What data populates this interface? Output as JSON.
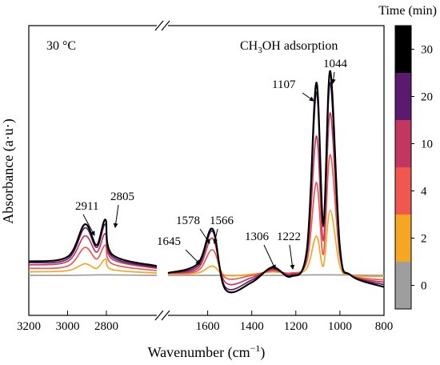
{
  "chart_data": {
    "type": "line",
    "title": "",
    "xlabel": "Wavenumber (cm",
    "xlabel_sup": "−1",
    "xlabel_close": ")",
    "ylabel": "Absorbance (a·u·)",
    "x_reversed": true,
    "x_break": true,
    "xlim_left_panel": [
      3200,
      2540
    ],
    "xlim_right_panel": [
      1780,
      800
    ],
    "x_ticks": [
      {
        "label": "3200",
        "value": 3200
      },
      {
        "label": "3000",
        "value": 3000
      },
      {
        "label": "2800",
        "value": 2800
      },
      {
        "label": "1600",
        "value": 1600
      },
      {
        "label": "1400",
        "value": 1400
      },
      {
        "label": "1200",
        "value": 1200
      },
      {
        "label": "1000",
        "value": 1000
      },
      {
        "label": "800",
        "value": 800
      }
    ],
    "annotations": {
      "temperature": "30 °C",
      "condition_main": "CH",
      "condition_sub": "3",
      "condition_tail": "OH adsorption"
    },
    "peak_labels": [
      {
        "label": "2911",
        "x": 2911
      },
      {
        "label": "2805",
        "x": 2805
      },
      {
        "label": "1645",
        "x": 1645
      },
      {
        "label": "1578",
        "x": 1578
      },
      {
        "label": "1566",
        "x": 1566
      },
      {
        "label": "1306",
        "x": 1306
      },
      {
        "label": "1222",
        "x": 1222
      },
      {
        "label": "1107",
        "x": 1107
      },
      {
        "label": "1044",
        "x": 1044
      }
    ],
    "colorbar": {
      "title": "Time (min)",
      "levels": [
        "0",
        "2",
        "4",
        "10",
        "20",
        "30"
      ],
      "colors": [
        "#9e9e9e",
        "#f5a623",
        "#f0584f",
        "#c2375f",
        "#5a1a6e",
        "#000000"
      ]
    },
    "series": [
      {
        "time": 0,
        "color": "#9e9e9e",
        "left": [
          [
            3200,
            0.0
          ],
          [
            3000,
            0.0
          ],
          [
            2911,
            0.001
          ],
          [
            2805,
            0.002
          ],
          [
            2540,
            0.0
          ]
        ],
        "right": [
          [
            1780,
            0.0
          ],
          [
            1600,
            0.0
          ],
          [
            1500,
            0.0
          ],
          [
            1300,
            0.0
          ],
          [
            1107,
            0.002
          ],
          [
            1044,
            0.002
          ],
          [
            800,
            0.0
          ]
        ]
      },
      {
        "time": 2,
        "color": "#f5a623",
        "left": [
          [
            3200,
            0.015
          ],
          [
            3000,
            0.02
          ],
          [
            2911,
            0.05
          ],
          [
            2850,
            0.03
          ],
          [
            2805,
            0.07
          ],
          [
            2770,
            0.025
          ],
          [
            2540,
            0.01
          ]
        ],
        "right": [
          [
            1780,
            0.005
          ],
          [
            1645,
            0.01
          ],
          [
            1578,
            0.04
          ],
          [
            1520,
            0.0
          ],
          [
            1400,
            0.005
          ],
          [
            1306,
            0.015
          ],
          [
            1222,
            0.01
          ],
          [
            1150,
            0.03
          ],
          [
            1107,
            0.17
          ],
          [
            1075,
            0.04
          ],
          [
            1044,
            0.28
          ],
          [
            1000,
            0.04
          ],
          [
            950,
            0.0
          ],
          [
            800,
            -0.005
          ]
        ]
      },
      {
        "time": 4,
        "color": "#f0584f",
        "left": [
          [
            3200,
            0.03
          ],
          [
            3000,
            0.04
          ],
          [
            2911,
            0.12
          ],
          [
            2850,
            0.07
          ],
          [
            2805,
            0.13
          ],
          [
            2770,
            0.05
          ],
          [
            2540,
            0.02
          ]
        ],
        "right": [
          [
            1780,
            0.01
          ],
          [
            1645,
            0.02
          ],
          [
            1578,
            0.11
          ],
          [
            1520,
            -0.01
          ],
          [
            1400,
            0.0
          ],
          [
            1306,
            0.02
          ],
          [
            1222,
            0.01
          ],
          [
            1150,
            0.06
          ],
          [
            1107,
            0.4
          ],
          [
            1075,
            0.09
          ],
          [
            1044,
            0.52
          ],
          [
            1000,
            0.08
          ],
          [
            950,
            0.0
          ],
          [
            800,
            -0.02
          ]
        ]
      },
      {
        "time": 10,
        "color": "#c2375f",
        "left": [
          [
            3200,
            0.045
          ],
          [
            3000,
            0.06
          ],
          [
            2911,
            0.17
          ],
          [
            2850,
            0.1
          ],
          [
            2805,
            0.18
          ],
          [
            2770,
            0.07
          ],
          [
            2540,
            0.03
          ]
        ],
        "right": [
          [
            1780,
            0.01
          ],
          [
            1645,
            0.03
          ],
          [
            1578,
            0.16
          ],
          [
            1520,
            -0.03
          ],
          [
            1400,
            -0.01
          ],
          [
            1306,
            0.025
          ],
          [
            1222,
            0.005
          ],
          [
            1150,
            0.08
          ],
          [
            1107,
            0.6
          ],
          [
            1075,
            0.15
          ],
          [
            1044,
            0.7
          ],
          [
            1000,
            0.1
          ],
          [
            950,
            0.0
          ],
          [
            800,
            -0.03
          ]
        ]
      },
      {
        "time": 20,
        "color": "#5a1a6e",
        "left": [
          [
            3200,
            0.055
          ],
          [
            3000,
            0.07
          ],
          [
            2911,
            0.205
          ],
          [
            2850,
            0.12
          ],
          [
            2805,
            0.22
          ],
          [
            2770,
            0.08
          ],
          [
            2540,
            0.035
          ]
        ],
        "right": [
          [
            1780,
            0.01
          ],
          [
            1645,
            0.04
          ],
          [
            1578,
            0.19
          ],
          [
            1520,
            -0.05
          ],
          [
            1400,
            -0.02
          ],
          [
            1306,
            0.03
          ],
          [
            1222,
            0.0
          ],
          [
            1150,
            0.1
          ],
          [
            1107,
            0.79
          ],
          [
            1075,
            0.21
          ],
          [
            1044,
            0.83
          ],
          [
            1000,
            0.11
          ],
          [
            950,
            0.0
          ],
          [
            800,
            -0.04
          ]
        ]
      },
      {
        "time": 30,
        "color": "#000000",
        "left": [
          [
            3200,
            0.06
          ],
          [
            3000,
            0.08
          ],
          [
            2911,
            0.22
          ],
          [
            2850,
            0.13
          ],
          [
            2805,
            0.24
          ],
          [
            2770,
            0.09
          ],
          [
            2540,
            0.04
          ]
        ],
        "right": [
          [
            1780,
            0.01
          ],
          [
            1645,
            0.05
          ],
          [
            1578,
            0.2
          ],
          [
            1520,
            -0.06
          ],
          [
            1400,
            -0.03
          ],
          [
            1306,
            0.035
          ],
          [
            1222,
            -0.005
          ],
          [
            1150,
            0.11
          ],
          [
            1107,
            0.83
          ],
          [
            1075,
            0.22
          ],
          [
            1044,
            0.88
          ],
          [
            1000,
            0.12
          ],
          [
            950,
            0.0
          ],
          [
            800,
            -0.05
          ]
        ]
      }
    ],
    "legend": "right-colorbar",
    "grid": false
  }
}
